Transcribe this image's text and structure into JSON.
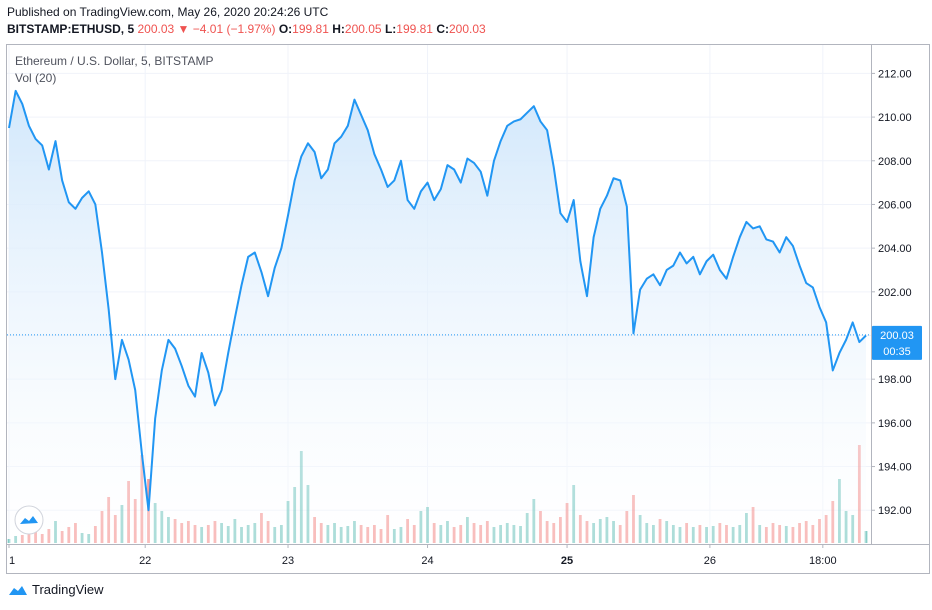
{
  "published_text": "Published on TradingView.com, May 26, 2020 20:24:26 UTC",
  "legend": {
    "symbol": "BITSTAMP:ETHUSD, 5",
    "last": "200.03",
    "arrow": "▼",
    "change": "−4.01 (−1.97%)",
    "open_label": "O:",
    "open": "199.81",
    "high_label": "H:",
    "high": "200.05",
    "low_label": "L:",
    "low": "199.81",
    "close_label": "C:",
    "close": "200.03"
  },
  "chart_title": "Ethereum / U.S. Dollar, 5, BITSTAMP",
  "volume_label": "Vol (20)",
  "footer_brand": "TradingView",
  "colors": {
    "line": "#2196f3",
    "area_top": "#cfe6fb",
    "area_bottom": "#ffffff",
    "down": "#ef5350",
    "up": "#26a69a",
    "grid": "#f0f3fa",
    "price_label_bg": "#2196f3"
  },
  "chart_data": {
    "type": "area",
    "x_tick_labels": [
      "1",
      "22",
      "23",
      "24",
      "25",
      "26",
      "18:00"
    ],
    "y_tick_labels": [
      "192.00",
      "194.00",
      "196.00",
      "198.00",
      "200.00",
      "202.00",
      "204.00",
      "206.00",
      "208.00",
      "210.00",
      "212.00"
    ],
    "ylim": [
      190.5,
      213.3
    ],
    "current_price_label": "200.03",
    "countdown_label": "00:35",
    "current_price": 200.03,
    "grid": true,
    "series": [
      {
        "values": [
          209.5,
          211.2,
          210.6,
          209.6,
          209.0,
          208.7,
          207.6,
          208.9,
          207.1,
          206.1,
          205.8,
          206.3,
          206.6,
          206.0,
          203.8,
          201.2,
          198.0,
          199.8,
          198.9,
          197.5,
          194.6,
          192.0,
          196.2,
          198.4,
          199.8,
          199.4,
          198.6,
          197.7,
          197.2,
          199.2,
          198.3,
          196.8,
          197.5,
          199.2,
          200.8,
          202.3,
          203.6,
          203.8,
          202.9,
          201.8,
          203.1,
          204.0,
          205.5,
          207.1,
          208.2,
          208.8,
          208.4,
          207.2,
          207.6,
          208.8,
          209.1,
          209.6,
          210.8,
          210.1,
          209.4,
          208.3,
          207.6,
          206.8,
          207.1,
          208.0,
          206.2,
          205.8,
          206.6,
          207.0,
          206.2,
          206.7,
          207.8,
          207.6,
          207.0,
          208.1,
          207.9,
          207.5,
          206.4,
          208.0,
          208.9,
          209.6,
          209.8,
          209.9,
          210.2,
          210.5,
          209.8,
          209.4,
          207.7,
          205.6,
          205.2,
          206.2,
          203.4,
          201.8,
          204.5,
          205.8,
          206.4,
          207.2,
          207.1,
          205.9,
          200.1,
          202.1,
          202.6,
          202.8,
          202.3,
          203.0,
          203.2,
          203.8,
          203.3,
          203.6,
          202.8,
          203.4,
          203.7,
          203.0,
          202.6,
          203.6,
          204.5,
          205.2,
          204.9,
          205.0,
          204.4,
          204.3,
          203.8,
          204.5,
          204.1,
          203.2,
          202.4,
          202.2,
          201.3,
          200.6,
          198.4,
          199.2,
          199.8,
          200.6,
          199.7,
          200.0
        ]
      }
    ],
    "volume": {
      "label": "Vol (20)",
      "values": [
        0.2,
        0.35,
        0.4,
        0.55,
        0.9,
        0.45,
        0.7,
        1.1,
        0.6,
        0.8,
        1.0,
        0.5,
        0.45,
        0.85,
        1.6,
        2.3,
        1.4,
        1.9,
        3.1,
        2.2,
        4.4,
        3.2,
        2.0,
        1.6,
        1.3,
        1.2,
        1.0,
        1.1,
        0.9,
        0.8,
        0.9,
        1.1,
        1.0,
        0.85,
        1.2,
        0.8,
        0.9,
        1.0,
        1.5,
        1.1,
        0.8,
        0.9,
        2.1,
        2.8,
        4.6,
        2.9,
        1.3,
        1.0,
        0.9,
        1.0,
        0.8,
        0.85,
        1.1,
        0.9,
        0.8,
        0.9,
        0.7,
        1.4,
        0.7,
        0.8,
        1.2,
        0.9,
        1.6,
        1.8,
        1.0,
        0.9,
        1.1,
        0.8,
        0.9,
        1.3,
        1.0,
        0.9,
        1.1,
        0.8,
        0.9,
        1.0,
        0.9,
        0.85,
        1.5,
        2.2,
        1.6,
        1.1,
        1.0,
        1.3,
        2.0,
        2.9,
        1.4,
        1.1,
        1.0,
        1.2,
        1.3,
        1.1,
        0.9,
        1.6,
        2.4,
        1.4,
        1.0,
        0.9,
        1.2,
        1.1,
        0.9,
        0.8,
        1.0,
        0.8,
        0.9,
        0.8,
        0.85,
        1.0,
        0.9,
        0.8,
        0.9,
        1.5,
        1.8,
        0.9,
        0.8,
        1.0,
        0.9,
        0.85,
        0.8,
        1.0,
        1.1,
        0.9,
        1.2,
        1.4,
        2.1,
        3.2,
        1.6,
        1.4,
        4.9,
        0.6
      ]
    }
  }
}
